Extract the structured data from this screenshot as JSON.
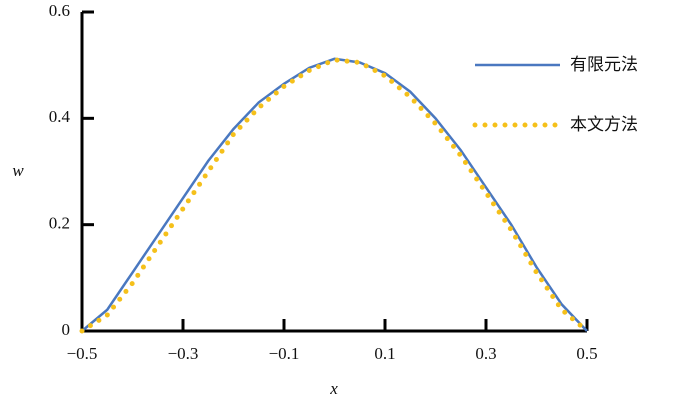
{
  "chart_data": {
    "type": "line",
    "x_label": "x",
    "y_label": "w",
    "x": [
      -0.5,
      -0.45,
      -0.4,
      -0.35,
      -0.3,
      -0.25,
      -0.2,
      -0.15,
      -0.1,
      -0.05,
      0,
      0.05,
      0.1,
      0.15,
      0.2,
      0.25,
      0.3,
      0.35,
      0.4,
      0.45,
      0.5
    ],
    "series": [
      {
        "name": "有限元法",
        "color": "#4a78c0",
        "style": "solid",
        "values": [
          0,
          0.04,
          0.11,
          0.18,
          0.25,
          0.32,
          0.38,
          0.43,
          0.465,
          0.495,
          0.512,
          0.505,
          0.485,
          0.45,
          0.4,
          0.34,
          0.27,
          0.2,
          0.12,
          0.05,
          0
        ]
      },
      {
        "name": "本文方法",
        "color": "#f5c01a",
        "style": "dotted",
        "values": [
          0,
          0.03,
          0.09,
          0.16,
          0.23,
          0.3,
          0.37,
          0.42,
          0.46,
          0.49,
          0.51,
          0.505,
          0.48,
          0.44,
          0.39,
          0.33,
          0.26,
          0.19,
          0.11,
          0.04,
          0
        ]
      }
    ],
    "xlim": [
      -0.5,
      0.5
    ],
    "xticks": [
      {
        "value": -0.5,
        "label": "−0.5"
      },
      {
        "value": -0.3,
        "label": "−0.3"
      },
      {
        "value": -0.1,
        "label": "−0.1"
      },
      0.1,
      0.3,
      0.5
    ],
    "ylim": [
      0,
      0.6
    ],
    "yticks": [
      0,
      0.2,
      0.4,
      0.6
    ],
    "grid": false,
    "legend": "upper right"
  }
}
